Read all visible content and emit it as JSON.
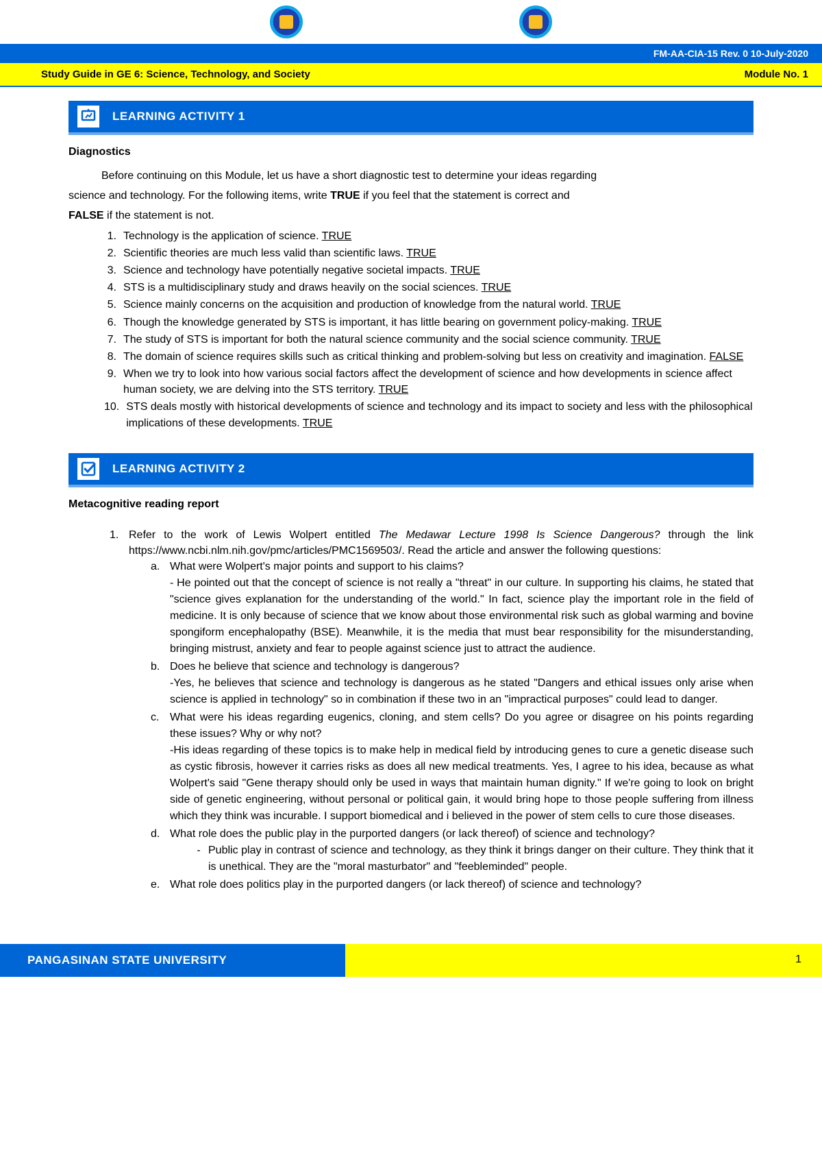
{
  "header": {
    "code": "FM-AA-CIA-15 Rev. 0  10-July-2020",
    "course": "Study Guide in GE 6: Science, Technology, and Society",
    "module": "Module No. 1"
  },
  "activity1": {
    "title": "LEARNING ACTIVITY 1",
    "subtitle": "Diagnostics",
    "intro1": "Before continuing on this Module, let us have a short diagnostic test to determine your ideas regarding",
    "intro2_pre": "science and technology. For the following items, write ",
    "intro2_true": "TRUE",
    "intro2_mid": " if you feel that the statement is correct and ",
    "intro3_false": "FALSE",
    "intro3_post": " if the statement is not.",
    "items": [
      {
        "n": "1.",
        "text": "Technology is the application of science. ",
        "ans": "TRUE"
      },
      {
        "n": "2.",
        "text": "Scientific theories are much less valid than scientific laws. ",
        "ans": "TRUE"
      },
      {
        "n": "3.",
        "text": "Science and technology have potentially negative societal impacts. ",
        "ans": "TRUE"
      },
      {
        "n": "4.",
        "text": "STS is a multidisciplinary study and draws heavily on the social sciences. ",
        "ans": "TRUE"
      },
      {
        "n": "5.",
        "text": "Science mainly concerns on the acquisition and production of knowledge from the natural world. ",
        "ans": "TRUE"
      },
      {
        "n": "6.",
        "text": "Though the knowledge generated by STS is important, it has little bearing on government policy-making. ",
        "ans": "TRUE"
      },
      {
        "n": "7.",
        "text": "The study of STS is important for both the natural science community and the social science community. ",
        "ans": "TRUE"
      },
      {
        "n": "8.",
        "text": "The domain of science requires skills such as critical thinking and problem-solving but less on creativity and imagination. ",
        "ans": "FALSE"
      },
      {
        "n": "9.",
        "text": "When we try to look into how various social factors affect the development of science and how developments in science affect human society, we are delving into the STS territory. ",
        "ans": "TRUE"
      },
      {
        "n": "10.",
        "text": "STS deals mostly with historical developments of science and technology and its impact to society and less with the philosophical implications of these developments. ",
        "ans": "TRUE"
      }
    ]
  },
  "activity2": {
    "title": "LEARNING ACTIVITY 2",
    "subtitle": "Metacognitive reading report",
    "q1_num": "1.",
    "q1_pre": "Refer to the work of Lewis Wolpert entitled ",
    "q1_italic": "The Medawar Lecture 1998 Is Science Dangerous?",
    "q1_post": " through the link https://www.ncbi.nlm.nih.gov/pmc/articles/PMC1569503/. Read the article and answer the following questions:",
    "subs": {
      "a": {
        "letter": "a.",
        "q": "What were Wolpert's major points and support to his claims?",
        "a": "- He pointed out that the concept of science is not really a \"threat\" in our culture. In supporting his claims, he stated that \"science gives explanation for the understanding of the world.\" In fact, science play the important role in the field of medicine. It is only because of science that we know about those environmental risk such as global warming and bovine spongiform encephalopathy (BSE). Meanwhile, it is the media that must bear responsibility for the misunderstanding, bringing mistrust, anxiety and fear to people against science just to attract the audience."
      },
      "b": {
        "letter": "b.",
        "q": "Does he believe that science and technology is dangerous?",
        "a": "-Yes, he believes that science and technology is dangerous as he stated \"Dangers and ethical issues only arise when science is applied in technology\" so in combination if these two in an \"impractical purposes\" could lead to danger."
      },
      "c": {
        "letter": "c.",
        "q": "What were his ideas regarding eugenics, cloning, and stem cells?  Do you agree or disagree on his points regarding these issues?  Why or why not?",
        "a": "-His ideas regarding of these topics is to make help in medical field by introducing genes to cure a genetic disease such as cystic fibrosis, however it carries risks as does all new medical treatments. Yes, I agree to his idea, because as what Wolpert's said \"Gene therapy should only be used in ways that maintain human dignity.\" If we're going to look on bright side of genetic engineering, without personal or political gain, it would bring hope to those people suffering from illness which they think was incurable. I support biomedical and i believed in the power of stem cells to cure those diseases."
      },
      "d": {
        "letter": "d.",
        "q": "What role does the public play in the purported dangers (or lack thereof) of science and technology?",
        "dash": "-",
        "a": "Public play in contrast of science and technology, as they think it brings danger on their culture. They think that it is unethical. They are the \"moral masturbator\" and \"feebleminded\" people."
      },
      "e": {
        "letter": "e.",
        "q": "What role does politics play in the purported dangers (or lack thereof) of science and technology?"
      }
    }
  },
  "footer": {
    "university": "PANGASINAN STATE UNIVERSITY",
    "page": "1"
  }
}
